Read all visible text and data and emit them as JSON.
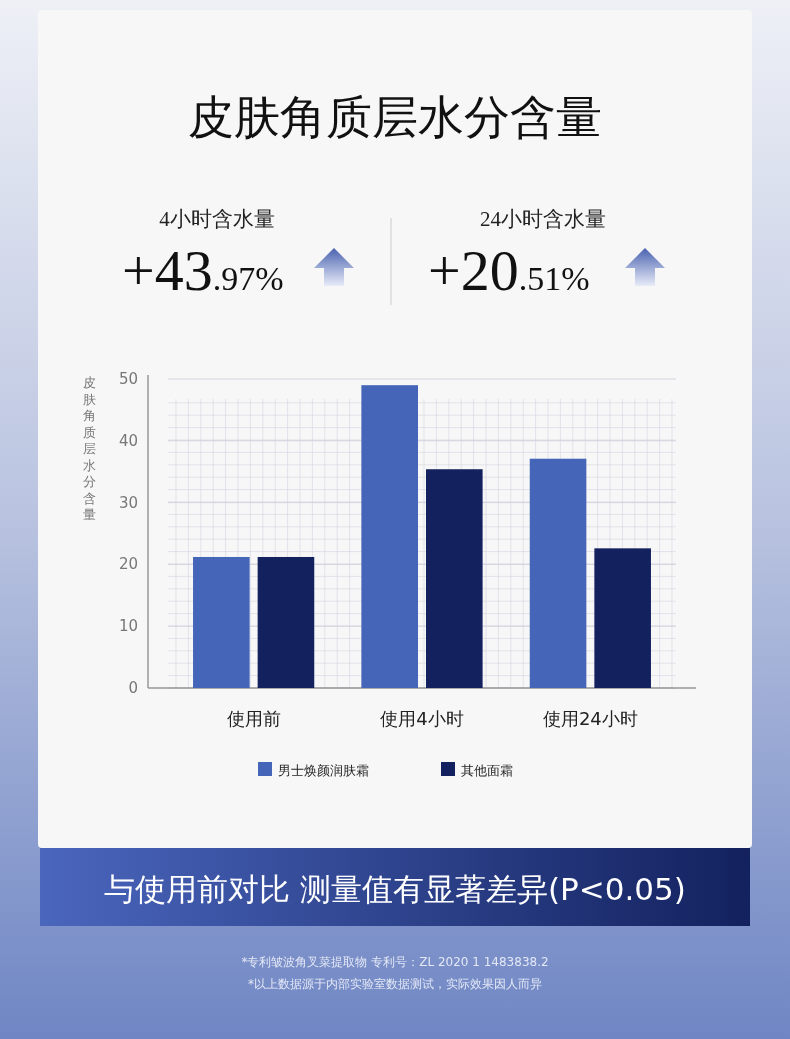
{
  "chart_data": {
    "type": "bar",
    "title": "皮肤角质层水分含量",
    "ylabel": "皮肤角质层水分含量",
    "categories": [
      "使用前",
      "使用4小时",
      "使用24小时"
    ],
    "series": [
      {
        "name": "男士焕颜润肤霜",
        "color": "#4565b8",
        "values": [
          21.2,
          49.0,
          37.1
        ]
      },
      {
        "name": "其他面霜",
        "color": "#13215e",
        "values": [
          21.2,
          35.4,
          22.6
        ]
      }
    ],
    "ylim": [
      0,
      50
    ],
    "yticks": [
      0,
      10,
      20,
      30,
      40,
      50
    ],
    "grid": true,
    "legend": "bottom",
    "annotations": [
      "4小时含水量",
      "+43.97%",
      "24小时含水量",
      "+20.51%",
      "与使用前对比  测量值有显著差异(P<0.05)",
      "*专利皱波角叉菜提取物  专利号：ZL  2020  1  1483838.2",
      "*以上数据源于内部实验室数据测试，实际效果因人而异"
    ]
  }
}
